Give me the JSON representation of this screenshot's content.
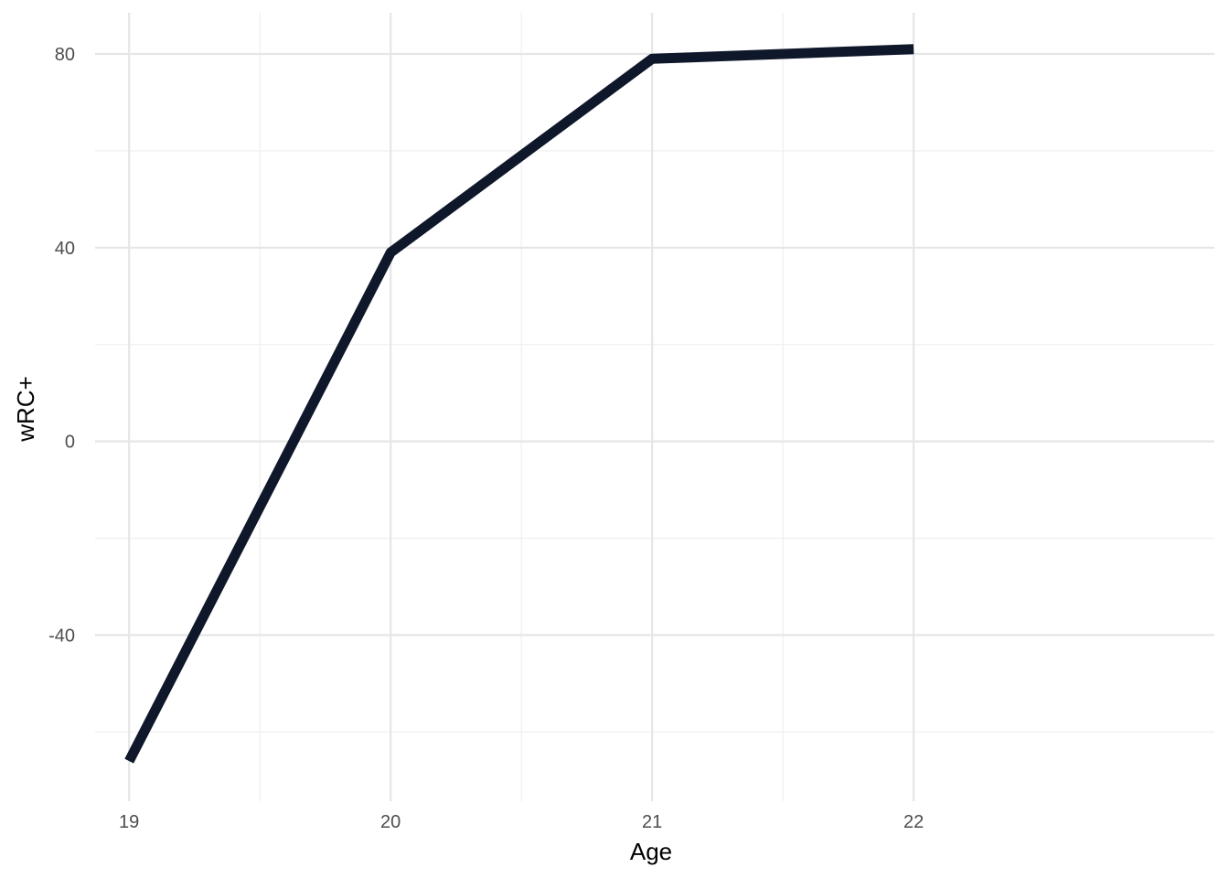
{
  "chart_data": {
    "type": "line",
    "title": "",
    "xlabel": "Age",
    "ylabel": "wRC+",
    "x": [
      19,
      20,
      21,
      22
    ],
    "series": [
      {
        "values": [
          -66,
          39,
          79,
          81
        ],
        "color": "#0f172a"
      }
    ],
    "xticks": [
      19,
      20,
      21,
      22
    ],
    "yticks": [
      -40,
      0,
      40,
      80
    ],
    "xlim": [
      18.87,
      23.15
    ],
    "ylim": [
      -74.3,
      88.5
    ],
    "grid": true,
    "legend": "none"
  }
}
